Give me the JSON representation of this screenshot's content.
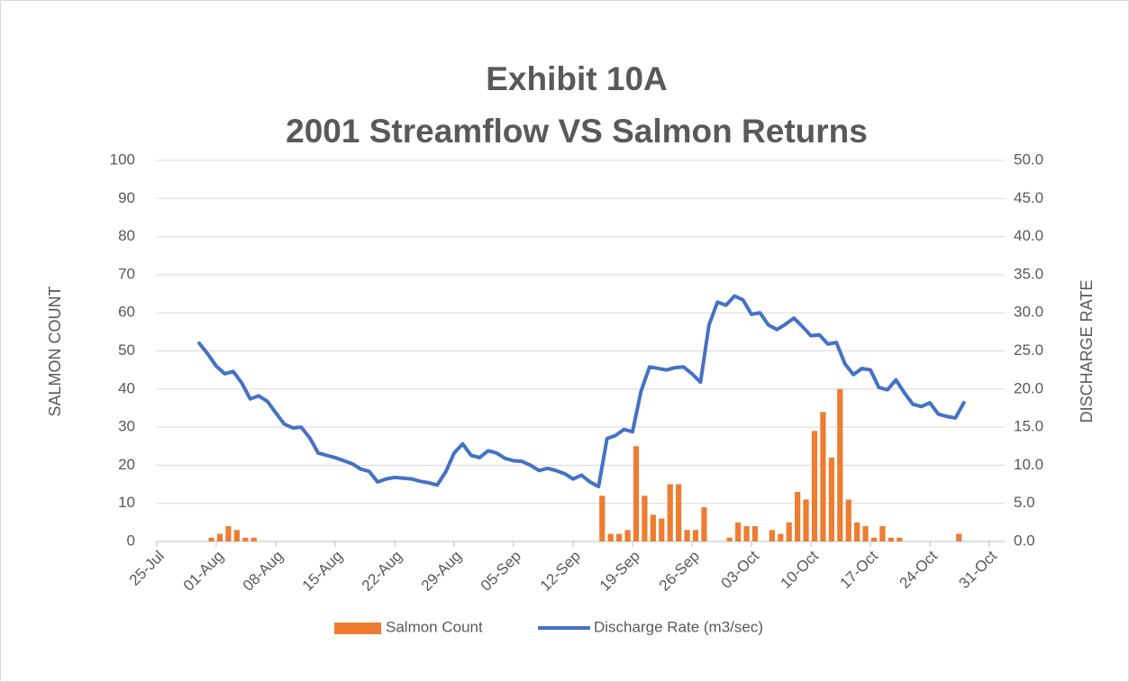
{
  "chart_data": {
    "type": "bar-line",
    "title": "Exhibit 10A",
    "subtitle": "2001 Streamflow VS Salmon Returns",
    "y_label": "SALMON COUNT",
    "y2_label": "DISCHARGE RATE",
    "x": [
      "30-Jul",
      "31-Jul",
      "01-Aug",
      "02-Aug",
      "03-Aug",
      "04-Aug",
      "05-Aug",
      "06-Aug",
      "07-Aug",
      "08-Aug",
      "09-Aug",
      "10-Aug",
      "11-Aug",
      "12-Aug",
      "13-Aug",
      "14-Aug",
      "15-Aug",
      "16-Aug",
      "17-Aug",
      "18-Aug",
      "19-Aug",
      "20-Aug",
      "21-Aug",
      "22-Aug",
      "23-Aug",
      "24-Aug",
      "25-Aug",
      "26-Aug",
      "27-Aug",
      "28-Aug",
      "29-Aug",
      "30-Aug",
      "31-Aug",
      "01-Sep",
      "02-Sep",
      "03-Sep",
      "04-Sep",
      "05-Sep",
      "06-Sep",
      "07-Sep",
      "08-Sep",
      "09-Sep",
      "10-Sep",
      "11-Sep",
      "12-Sep",
      "13-Sep",
      "14-Sep",
      "15-Sep",
      "16-Sep",
      "17-Sep",
      "18-Sep",
      "19-Sep",
      "20-Sep",
      "21-Sep",
      "22-Sep",
      "23-Sep",
      "24-Sep",
      "25-Sep",
      "26-Sep",
      "27-Sep",
      "28-Sep",
      "29-Sep",
      "30-Sep",
      "01-Oct",
      "02-Oct",
      "03-Oct",
      "04-Oct",
      "05-Oct",
      "06-Oct",
      "07-Oct",
      "08-Oct",
      "09-Oct",
      "10-Oct",
      "11-Oct",
      "12-Oct",
      "13-Oct",
      "14-Oct",
      "15-Oct",
      "16-Oct",
      "17-Oct",
      "18-Oct",
      "19-Oct",
      "20-Oct",
      "21-Oct",
      "22-Oct",
      "23-Oct",
      "24-Oct",
      "25-Oct",
      "26-Oct",
      "27-Oct",
      "28-Oct"
    ],
    "series": [
      {
        "name": "Salmon Count",
        "color": "#ED7D31",
        "kind": "bar",
        "axis": "y",
        "values": [
          0,
          1,
          2,
          4,
          3,
          1,
          1,
          0,
          0,
          0,
          0,
          0,
          0,
          0,
          0,
          0,
          0,
          0,
          0,
          0,
          0,
          0,
          0,
          0,
          0,
          0,
          0,
          0,
          0,
          0,
          0,
          0,
          0,
          0,
          0,
          0,
          0,
          0,
          0,
          0,
          0,
          0,
          0,
          0,
          0,
          0,
          0,
          12,
          2,
          2,
          3,
          25,
          12,
          7,
          6,
          15,
          15,
          3,
          3,
          9,
          0,
          0,
          1,
          5,
          4,
          4,
          0,
          3,
          2,
          5,
          13,
          11,
          29,
          34,
          22,
          40,
          11,
          5,
          4,
          1,
          4,
          1,
          1,
          0,
          0,
          0,
          0,
          0,
          0,
          2,
          0
        ]
      },
      {
        "name": "Discharge Rate (m3/sec)",
        "color": "#4472C4",
        "kind": "line",
        "axis": "y2",
        "values": [
          26.0,
          24.6,
          23.0,
          22.0,
          22.3,
          20.8,
          18.7,
          19.1,
          18.4,
          16.9,
          15.4,
          14.9,
          15.0,
          13.6,
          11.6,
          11.3,
          11.0,
          10.6,
          10.2,
          9.5,
          9.2,
          7.8,
          8.2,
          8.4,
          8.3,
          8.2,
          7.9,
          7.7,
          7.4,
          9.1,
          11.6,
          12.8,
          11.3,
          11.0,
          11.9,
          11.6,
          10.9,
          10.6,
          10.5,
          10.0,
          9.3,
          9.6,
          9.3,
          8.9,
          8.2,
          8.7,
          7.8,
          7.2,
          13.5,
          13.9,
          14.7,
          14.4,
          19.7,
          22.9,
          22.7,
          22.5,
          22.8,
          22.9,
          22.0,
          20.9,
          28.4,
          31.4,
          31.0,
          32.2,
          31.7,
          29.8,
          30.0,
          28.4,
          27.8,
          28.5,
          29.3,
          28.2,
          27.0,
          27.1,
          25.9,
          26.1,
          23.3,
          21.9,
          22.7,
          22.5,
          20.2,
          19.9,
          21.2,
          19.5,
          18.0,
          17.7,
          18.2,
          16.7,
          16.4,
          16.2,
          18.2
        ]
      }
    ],
    "xlim": [
      "25-Jul",
      "31-Oct"
    ],
    "xticks": [
      "25-Jul",
      "01-Aug",
      "08-Aug",
      "15-Aug",
      "22-Aug",
      "29-Aug",
      "05-Sep",
      "12-Sep",
      "19-Sep",
      "26-Sep",
      "03-Oct",
      "10-Oct",
      "17-Oct",
      "24-Oct",
      "31-Oct"
    ],
    "ylim": [
      0,
      100
    ],
    "yticks": [
      0,
      10,
      20,
      30,
      40,
      50,
      60,
      70,
      80,
      90,
      100
    ],
    "y2lim": [
      0,
      50
    ],
    "y2ticks": [
      {
        "value": 0,
        "label": "0.0"
      },
      {
        "value": 5,
        "label": "5.0"
      },
      {
        "value": 10,
        "label": "10.0"
      },
      {
        "value": 15,
        "label": "15.0"
      },
      {
        "value": 20,
        "label": "20.0"
      },
      {
        "value": 25,
        "label": "25.0"
      },
      {
        "value": 30,
        "label": "30.0"
      },
      {
        "value": 35,
        "label": "35.0"
      },
      {
        "value": 40,
        "label": "40.0"
      },
      {
        "value": 45,
        "label": "45.0"
      },
      {
        "value": 50,
        "label": "50.0"
      }
    ],
    "grid": true,
    "legend": "bottom"
  }
}
